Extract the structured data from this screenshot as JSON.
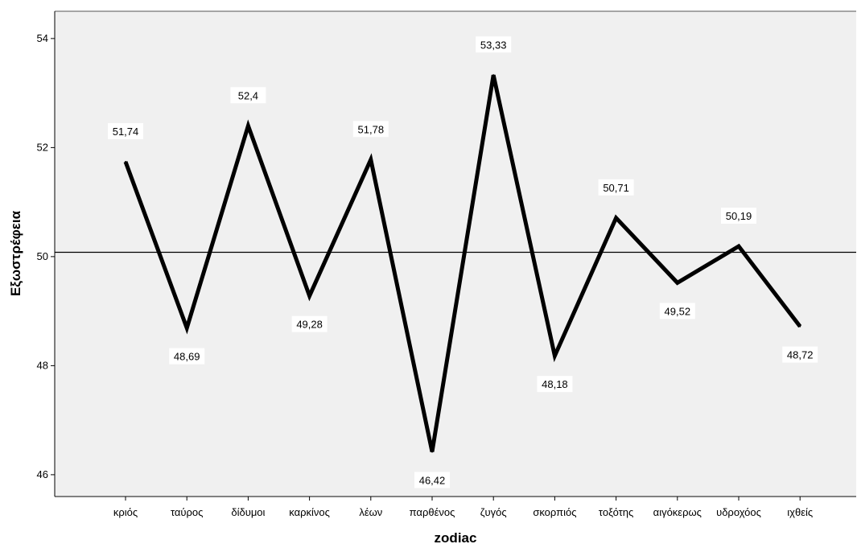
{
  "chart_data": {
    "type": "line",
    "title": "",
    "xlabel": "zodiac",
    "ylabel": "Εξωστρέφεια",
    "categories": [
      "κριός",
      "ταύρος",
      "δίδυμοι",
      "καρκίνος",
      "λέων",
      "παρθένος",
      "ζυγός",
      "σκορπιός",
      "τοξότης",
      "αιγόκερως",
      "υδροχόος",
      "ιχθείς"
    ],
    "series": [
      {
        "values": [
          51.74,
          48.69,
          52.4,
          49.28,
          51.78,
          46.42,
          53.33,
          48.18,
          50.71,
          49.52,
          50.19,
          48.72
        ],
        "labels": [
          "51,74",
          "48,69",
          "52,4",
          "49,28",
          "51,78",
          "46,42",
          "53,33",
          "48,18",
          "50,71",
          "49,52",
          "50,19",
          "48,72"
        ]
      }
    ],
    "label_positions": [
      "above",
      "below",
      "above",
      "below",
      "above",
      "below",
      "above",
      "below",
      "above",
      "below",
      "above",
      "below"
    ],
    "yticks": [
      46,
      48,
      50,
      52,
      54
    ],
    "ytick_labels": [
      "46",
      "48",
      "50",
      "52",
      "54"
    ],
    "ylim": [
      45.6,
      54.5
    ],
    "reference_line": 50.08,
    "grid": false,
    "legend": "none",
    "colors": {
      "plot_background": "#f0f0f0",
      "line": "#000000",
      "reference_line": "#000000",
      "label_box": "#ffffff"
    }
  }
}
